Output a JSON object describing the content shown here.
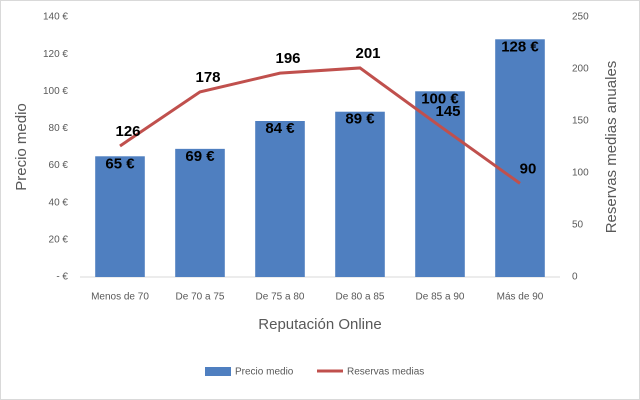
{
  "chart_data": {
    "type": "bar",
    "x_label": "Reputación Online",
    "y_label": "Precio medio",
    "y2_label": "Reservas medias anuales",
    "categories": [
      "Menos de 70",
      "De 70 a 75",
      "De 75 a 80",
      "De 80 a 85",
      "De 85 a 90",
      "Más de 90"
    ],
    "series": [
      {
        "name": "Precio medio",
        "type": "bar",
        "color": "#4f7fc0",
        "values": [
          65,
          69,
          84,
          89,
          100,
          128
        ],
        "value_labels": [
          "65 €",
          "69 €",
          "84 €",
          "89 €",
          "100 €",
          "128 €"
        ]
      },
      {
        "name": "Reservas medias",
        "type": "line",
        "axis": "y2",
        "color": "#c0504d",
        "values": [
          126,
          178,
          196,
          201,
          145,
          90
        ]
      }
    ],
    "ylim": [
      0,
      140
    ],
    "yticks": [
      {
        "value": 0,
        "label": "- €"
      },
      {
        "value": 20,
        "label": "20 €"
      },
      {
        "value": 40,
        "label": "40 €"
      },
      {
        "value": 60,
        "label": "60 €"
      },
      {
        "value": 80,
        "label": "80 €"
      },
      {
        "value": 100,
        "label": "100 €"
      },
      {
        "value": 120,
        "label": "120 €"
      },
      {
        "value": 140,
        "label": "140 €"
      }
    ],
    "y2lim": [
      0,
      250
    ],
    "y2ticks": [
      0,
      50,
      100,
      150,
      200,
      250
    ],
    "grid": false,
    "legend": "bottom"
  }
}
